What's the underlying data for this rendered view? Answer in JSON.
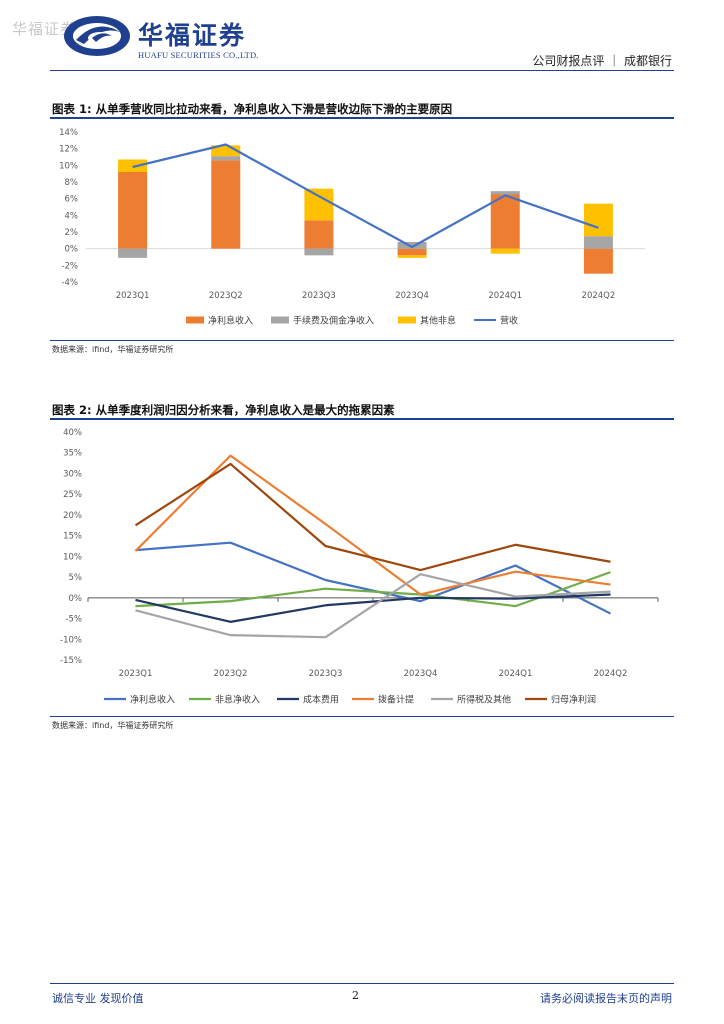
{
  "header": {
    "watermark": "华福证券",
    "company_cn": "华福证券",
    "company_en": "HUAFU SECURITIES CO.,LTD.",
    "report_tag": "公司财报点评 ｜ 成都银行"
  },
  "figure1": {
    "title": "图表 1:  从单季营收同比拉动来看，净利息收入下滑是营收边际下滑的主要原因",
    "source": "数据来源：ifind，华福证券研究所"
  },
  "figure2": {
    "title": "图表 2:  从单季度利润归因分析来看，净利息收入是最大的拖累因素",
    "source": "数据来源：ifind，华福证券研究所"
  },
  "footer": {
    "left": "诚信专业  发现价值",
    "page": "2",
    "right": "请务必阅读报告末页的声明"
  },
  "chart_data": [
    {
      "type": "bar",
      "stacked": true,
      "categories": [
        "2023Q1",
        "2023Q2",
        "2023Q3",
        "2023Q4",
        "2024Q1",
        "2024Q2"
      ],
      "series": [
        {
          "name": "净利息收入",
          "type": "bar",
          "color": "#ED7D31",
          "values": [
            9.2,
            10.6,
            3.4,
            -0.8,
            6.5,
            -3.0
          ]
        },
        {
          "name": "手续费及佣金净收入",
          "type": "bar",
          "color": "#A5A5A5",
          "values": [
            -1.1,
            0.5,
            -0.8,
            0.8,
            0.4,
            1.5
          ]
        },
        {
          "name": "其他非息",
          "type": "bar",
          "color": "#FFC000",
          "values": [
            1.5,
            1.3,
            3.8,
            -0.3,
            -0.6,
            3.9
          ]
        },
        {
          "name": "营收",
          "type": "line",
          "color": "#4472C4",
          "values": [
            9.8,
            12.5,
            6.3,
            0.2,
            6.4,
            2.5
          ]
        }
      ],
      "ylim": [
        -4,
        14
      ],
      "yticks": [
        -4,
        -2,
        0,
        2,
        4,
        6,
        8,
        10,
        12,
        14
      ],
      "ytick_labels": [
        "-4%",
        "-2%",
        "0%",
        "2%",
        "4%",
        "6%",
        "8%",
        "10%",
        "12%",
        "14%"
      ],
      "legend": "bottom"
    },
    {
      "type": "line",
      "categories": [
        "2023Q1",
        "2023Q2",
        "2023Q3",
        "2023Q4",
        "2024Q1",
        "2024Q2"
      ],
      "series": [
        {
          "name": "净利息收入",
          "color": "#4472C4",
          "values": [
            11.5,
            13.3,
            4.3,
            -0.8,
            7.8,
            -3.8
          ]
        },
        {
          "name": "非息净收入",
          "color": "#70AD47",
          "values": [
            -2.0,
            -0.8,
            2.2,
            0.8,
            -2.0,
            6.2
          ]
        },
        {
          "name": "成本费用",
          "color": "#203864",
          "values": [
            -0.5,
            -5.8,
            -1.8,
            0.0,
            -0.2,
            0.8
          ]
        },
        {
          "name": "拨备计提",
          "color": "#ED7D31",
          "values": [
            11.3,
            34.3,
            17.8,
            0.8,
            6.3,
            3.2
          ]
        },
        {
          "name": "所得税及其他",
          "color": "#A5A5A5",
          "values": [
            -3.0,
            -9.0,
            -9.5,
            5.7,
            0.3,
            1.5
          ]
        },
        {
          "name": "归母净利润",
          "color": "#9E480E",
          "values": [
            17.5,
            32.3,
            12.5,
            6.7,
            12.8,
            8.7
          ]
        }
      ],
      "ylim": [
        -15,
        40
      ],
      "yticks": [
        -15,
        -10,
        -5,
        0,
        5,
        10,
        15,
        20,
        25,
        30,
        35,
        40
      ],
      "ytick_labels": [
        "-15%",
        "-10%",
        "-5%",
        "0%",
        "5%",
        "10%",
        "15%",
        "20%",
        "25%",
        "30%",
        "35%",
        "40%"
      ],
      "legend": "bottom"
    }
  ]
}
